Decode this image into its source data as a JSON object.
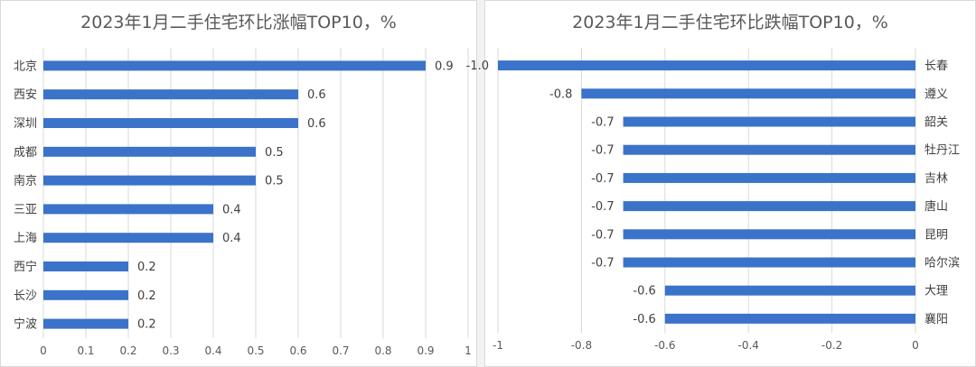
{
  "chart_data": [
    {
      "type": "bar",
      "orientation": "horizontal",
      "title": "2023年1月二手住宅环比涨幅TOP10，%",
      "categories": [
        "北京",
        "西安",
        "深圳",
        "成都",
        "南京",
        "三亚",
        "上海",
        "西宁",
        "长沙",
        "宁波"
      ],
      "values": [
        0.9,
        0.6,
        0.6,
        0.5,
        0.5,
        0.4,
        0.4,
        0.2,
        0.2,
        0.2
      ],
      "xlim": [
        0,
        1
      ],
      "xticks": [
        "0",
        "0.1",
        "0.2",
        "0.3",
        "0.4",
        "0.5",
        "0.6",
        "0.7",
        "0.8",
        "0.9",
        "1"
      ],
      "grid": true,
      "bar_color": "#3a73c9"
    },
    {
      "type": "bar",
      "orientation": "horizontal",
      "title": "2023年1月二手住宅环比跌幅TOP10，%",
      "categories": [
        "长春",
        "遵义",
        "韶关",
        "牡丹江",
        "吉林",
        "唐山",
        "昆明",
        "哈尔滨",
        "大理",
        "襄阳"
      ],
      "values": [
        -1.0,
        -0.8,
        -0.7,
        -0.7,
        -0.7,
        -0.7,
        -0.7,
        -0.7,
        -0.6,
        -0.6
      ],
      "data_labels": [
        "-1.0",
        "-0.8",
        "-0.7",
        "-0.7",
        "-0.7",
        "-0.7",
        "-0.7",
        "-0.7",
        "-0.6",
        "-0.6"
      ],
      "xlim": [
        -1,
        0
      ],
      "xticks": [
        "-1",
        "-0.8",
        "-0.6",
        "-0.4",
        "-0.2",
        "0"
      ],
      "grid": true,
      "bar_color": "#3a73c9"
    }
  ]
}
